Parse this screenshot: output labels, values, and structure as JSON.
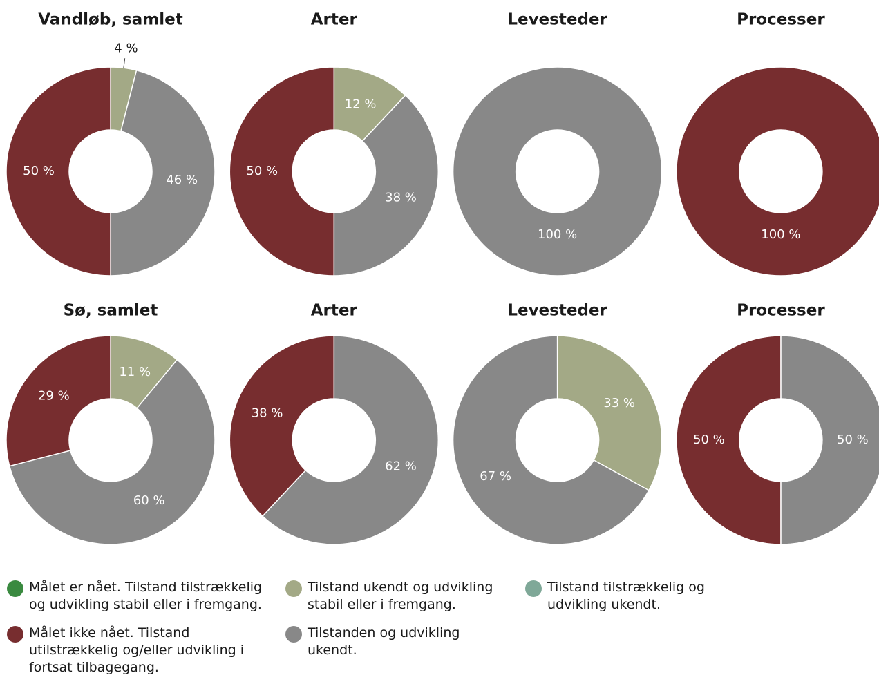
{
  "chart_data": [
    {
      "type": "pie",
      "title": "Vandløb, samlet",
      "values": [
        4,
        46,
        50
      ],
      "value_labels": [
        "4 %",
        "46 %",
        "50 %"
      ],
      "colors": [
        "#a3a986",
        "#888888",
        "#772d2f"
      ]
    },
    {
      "type": "pie",
      "title": "Arter",
      "values": [
        12,
        38,
        50
      ],
      "value_labels": [
        "12 %",
        "38 %",
        "50 %"
      ],
      "colors": [
        "#a3a986",
        "#888888",
        "#772d2f"
      ]
    },
    {
      "type": "pie",
      "title": "Levesteder",
      "values": [
        100
      ],
      "value_labels": [
        "100 %"
      ],
      "colors": [
        "#888888"
      ]
    },
    {
      "type": "pie",
      "title": "Processer",
      "values": [
        100
      ],
      "value_labels": [
        "100 %"
      ],
      "colors": [
        "#772d2f"
      ]
    },
    {
      "type": "pie",
      "title": "Sø, samlet",
      "values": [
        11,
        60,
        29
      ],
      "value_labels": [
        "11 %",
        "60 %",
        "29 %"
      ],
      "colors": [
        "#a3a986",
        "#888888",
        "#772d2f"
      ]
    },
    {
      "type": "pie",
      "title": "Arter",
      "values": [
        62,
        38
      ],
      "value_labels": [
        "62 %",
        "38 %"
      ],
      "colors": [
        "#888888",
        "#772d2f"
      ]
    },
    {
      "type": "pie",
      "title": "Levesteder",
      "values": [
        33,
        67
      ],
      "value_labels": [
        "33 %",
        "67 %"
      ],
      "colors": [
        "#a3a986",
        "#888888"
      ]
    },
    {
      "type": "pie",
      "title": "Processer",
      "values": [
        50,
        50
      ],
      "value_labels": [
        "50 %",
        "50 %"
      ],
      "colors": [
        "#888888",
        "#772d2f"
      ]
    }
  ],
  "legend": [
    {
      "name": "Målet er nået. Tilstand tilstrækkelig og udvikling stabil eller i fremgang.",
      "color": "#3a8a40"
    },
    {
      "name": "Tilstand ukendt og udvikling stabil eller i fremgang.",
      "color": "#a3a986"
    },
    {
      "name": "Tilstand tilstrækkelig og udvikling ukendt.",
      "color": "#7fa898"
    },
    {
      "name": "Målet ikke nået. Tilstand utilstrækkelig og/eller udvikling i fortsat tilbagegang.",
      "color": "#772d2f"
    },
    {
      "name": "Tilstanden og udvikling ukendt.",
      "color": "#888888"
    }
  ]
}
